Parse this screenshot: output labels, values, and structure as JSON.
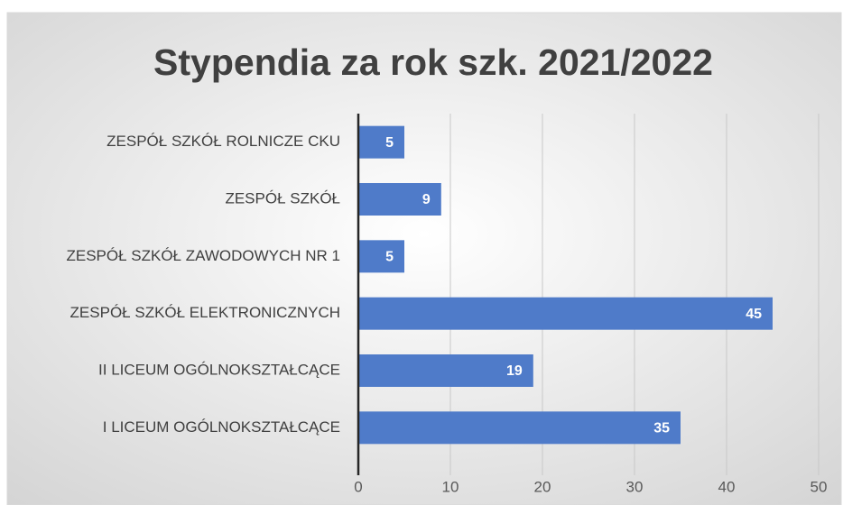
{
  "chart_data": {
    "type": "bar",
    "orientation": "horizontal",
    "title": "Stypendia za rok szk. 2021/2022",
    "categories": [
      "ZESPÓŁ SZKÓŁ ROLNICZE CKU",
      "ZESPÓŁ SZKÓŁ",
      "ZESPÓŁ SZKÓŁ ZAWODOWYCH NR 1",
      "ZESPÓŁ SZKÓŁ ELEKTRONICZNYCH",
      "II LICEUM OGÓLNOKSZTAŁCĄCE",
      "I LICEUM OGÓLNOKSZTAŁCĄCE"
    ],
    "values": [
      5,
      9,
      5,
      45,
      19,
      35
    ],
    "color": "#4f7bc9",
    "xlim": [
      0,
      50
    ],
    "xticks": [
      0,
      10,
      20,
      30,
      40,
      50
    ],
    "grid": true
  }
}
